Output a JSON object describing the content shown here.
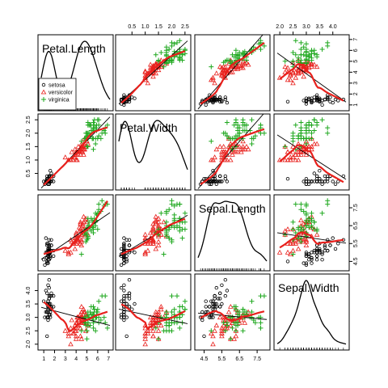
{
  "chart_data": {
    "type": "scatter",
    "layout": "scatterplot-matrix",
    "variables": [
      "Petal.Length",
      "Petal.Width",
      "Sepal.Length",
      "Sepal.Width"
    ],
    "ranges": {
      "Petal.Length": [
        1.0,
        6.9
      ],
      "Petal.Width": [
        0.1,
        2.5
      ],
      "Sepal.Length": [
        4.3,
        7.9
      ],
      "Sepal.Width": [
        2.0,
        4.4
      ]
    },
    "ticks": {
      "Petal.Length": [
        1,
        2,
        3,
        4,
        5,
        6,
        7
      ],
      "Petal.Width": [
        0.5,
        1.0,
        1.5,
        2.0,
        2.5
      ],
      "Sepal.Length": [
        4.5,
        5.5,
        6.5,
        7.5
      ],
      "Sepal.Width": [
        2.0,
        2.5,
        3.0,
        3.5,
        4.0
      ]
    },
    "tick_labels": {
      "Petal.Length": [
        "1",
        "2",
        "3",
        "4",
        "5",
        "6",
        "7"
      ],
      "Petal.Width": [
        "0.5",
        "1.0",
        "1.5",
        "2.0",
        "2.5"
      ],
      "Sepal.Length": [
        "4.5",
        "5.5",
        "6.5",
        "7.5"
      ],
      "Sepal.Width": [
        "2.0",
        "2.5",
        "3.0",
        "3.5",
        "4.0"
      ]
    },
    "groups": [
      {
        "name": "setosa",
        "marker": "circle",
        "color": "#000000"
      },
      {
        "name": "versicolor",
        "marker": "triangle",
        "color": "#e8201c"
      },
      {
        "name": "virginica",
        "marker": "plus",
        "color": "#1fa81f"
      }
    ],
    "smoother_color": "#e8201c",
    "regression_color": "#000000",
    "density_color": "#000000",
    "legend": {
      "position": "top-left panel, bottom-left",
      "entries": [
        "setosa",
        "versicolor",
        "virginica"
      ]
    },
    "points": {
      "setosa": [
        [
          1.4,
          0.2,
          5.1,
          3.5
        ],
        [
          1.4,
          0.2,
          4.9,
          3.0
        ],
        [
          1.3,
          0.2,
          4.7,
          3.2
        ],
        [
          1.5,
          0.2,
          4.6,
          3.1
        ],
        [
          1.4,
          0.2,
          5.0,
          3.6
        ],
        [
          1.7,
          0.4,
          5.4,
          3.9
        ],
        [
          1.4,
          0.3,
          4.6,
          3.4
        ],
        [
          1.5,
          0.2,
          5.0,
          3.4
        ],
        [
          1.4,
          0.2,
          4.4,
          2.9
        ],
        [
          1.5,
          0.1,
          4.9,
          3.1
        ],
        [
          1.5,
          0.2,
          5.4,
          3.7
        ],
        [
          1.6,
          0.2,
          4.8,
          3.4
        ],
        [
          1.4,
          0.1,
          4.8,
          3.0
        ],
        [
          1.1,
          0.1,
          4.3,
          3.0
        ],
        [
          1.2,
          0.2,
          5.8,
          4.0
        ],
        [
          1.5,
          0.4,
          5.7,
          4.4
        ],
        [
          1.3,
          0.4,
          5.4,
          3.9
        ],
        [
          1.4,
          0.3,
          5.1,
          3.5
        ],
        [
          1.7,
          0.3,
          5.7,
          3.8
        ],
        [
          1.5,
          0.3,
          5.1,
          3.8
        ],
        [
          1.7,
          0.2,
          5.4,
          3.4
        ],
        [
          1.5,
          0.4,
          5.1,
          3.7
        ],
        [
          1.0,
          0.2,
          4.6,
          3.6
        ],
        [
          1.7,
          0.5,
          5.1,
          3.3
        ],
        [
          1.9,
          0.2,
          4.8,
          3.4
        ],
        [
          1.6,
          0.2,
          5.0,
          3.0
        ],
        [
          1.6,
          0.4,
          5.0,
          3.4
        ],
        [
          1.5,
          0.2,
          5.2,
          3.5
        ],
        [
          1.4,
          0.2,
          5.2,
          3.4
        ],
        [
          1.6,
          0.2,
          4.7,
          3.2
        ],
        [
          1.6,
          0.2,
          4.8,
          3.1
        ],
        [
          1.5,
          0.4,
          5.4,
          3.4
        ],
        [
          1.5,
          0.1,
          5.2,
          4.1
        ],
        [
          1.4,
          0.2,
          5.5,
          4.2
        ],
        [
          1.5,
          0.2,
          4.9,
          3.1
        ],
        [
          1.2,
          0.2,
          5.0,
          3.2
        ],
        [
          1.3,
          0.2,
          5.5,
          3.5
        ],
        [
          1.4,
          0.1,
          4.9,
          3.6
        ],
        [
          1.3,
          0.2,
          4.4,
          3.0
        ],
        [
          1.5,
          0.2,
          5.1,
          3.4
        ],
        [
          1.3,
          0.3,
          5.0,
          3.5
        ],
        [
          1.3,
          0.3,
          4.5,
          2.3
        ],
        [
          1.3,
          0.2,
          4.4,
          3.2
        ],
        [
          1.6,
          0.6,
          5.0,
          3.5
        ],
        [
          1.9,
          0.4,
          5.1,
          3.8
        ],
        [
          1.4,
          0.3,
          4.8,
          3.0
        ],
        [
          1.6,
          0.2,
          5.1,
          3.8
        ],
        [
          1.4,
          0.2,
          4.6,
          3.2
        ],
        [
          1.5,
          0.2,
          5.3,
          3.7
        ],
        [
          1.4,
          0.2,
          5.0,
          3.3
        ]
      ],
      "versicolor": [
        [
          4.7,
          1.4,
          7.0,
          3.2
        ],
        [
          4.5,
          1.5,
          6.4,
          3.2
        ],
        [
          4.9,
          1.5,
          6.9,
          3.1
        ],
        [
          4.0,
          1.3,
          5.5,
          2.3
        ],
        [
          4.6,
          1.5,
          6.5,
          2.8
        ],
        [
          4.5,
          1.3,
          5.7,
          2.8
        ],
        [
          4.7,
          1.6,
          6.3,
          3.3
        ],
        [
          3.3,
          1.0,
          4.9,
          2.4
        ],
        [
          4.6,
          1.3,
          6.6,
          2.9
        ],
        [
          3.9,
          1.4,
          5.2,
          2.7
        ],
        [
          3.5,
          1.0,
          5.0,
          2.0
        ],
        [
          4.2,
          1.5,
          5.9,
          3.0
        ],
        [
          4.0,
          1.0,
          6.0,
          2.2
        ],
        [
          4.7,
          1.4,
          6.1,
          2.9
        ],
        [
          3.6,
          1.3,
          5.6,
          2.9
        ],
        [
          4.4,
          1.4,
          6.7,
          3.1
        ],
        [
          4.5,
          1.5,
          5.6,
          3.0
        ],
        [
          4.1,
          1.0,
          5.8,
          2.7
        ],
        [
          4.5,
          1.5,
          6.2,
          2.2
        ],
        [
          3.9,
          1.1,
          5.6,
          2.5
        ],
        [
          4.8,
          1.8,
          5.9,
          3.2
        ],
        [
          4.0,
          1.3,
          6.1,
          2.8
        ],
        [
          4.9,
          1.5,
          6.3,
          2.5
        ],
        [
          4.7,
          1.2,
          6.1,
          2.8
        ],
        [
          4.3,
          1.3,
          6.4,
          2.9
        ],
        [
          4.4,
          1.4,
          6.6,
          3.0
        ],
        [
          4.8,
          1.4,
          6.8,
          2.8
        ],
        [
          5.0,
          1.7,
          6.7,
          3.0
        ],
        [
          4.5,
          1.5,
          6.0,
          2.9
        ],
        [
          3.5,
          1.0,
          5.7,
          2.6
        ],
        [
          3.8,
          1.1,
          5.5,
          2.4
        ],
        [
          3.7,
          1.0,
          5.5,
          2.4
        ],
        [
          3.9,
          1.2,
          5.8,
          2.7
        ],
        [
          5.1,
          1.6,
          6.0,
          2.7
        ],
        [
          4.5,
          1.5,
          5.4,
          3.0
        ],
        [
          4.5,
          1.6,
          6.0,
          3.4
        ],
        [
          4.7,
          1.5,
          6.7,
          3.1
        ],
        [
          4.4,
          1.3,
          6.3,
          2.3
        ],
        [
          4.1,
          1.3,
          5.6,
          3.0
        ],
        [
          4.0,
          1.3,
          5.5,
          2.5
        ],
        [
          4.4,
          1.2,
          5.5,
          2.6
        ],
        [
          4.6,
          1.4,
          6.1,
          3.0
        ],
        [
          4.0,
          1.2,
          5.8,
          2.6
        ],
        [
          3.3,
          1.0,
          5.0,
          2.3
        ],
        [
          4.2,
          1.3,
          5.6,
          2.7
        ],
        [
          4.2,
          1.2,
          5.7,
          3.0
        ],
        [
          4.2,
          1.3,
          5.7,
          2.9
        ],
        [
          4.3,
          1.3,
          6.2,
          2.9
        ],
        [
          3.0,
          1.1,
          5.1,
          2.5
        ],
        [
          4.1,
          1.3,
          5.7,
          2.8
        ]
      ],
      "virginica": [
        [
          6.0,
          2.5,
          6.3,
          3.3
        ],
        [
          5.1,
          1.9,
          5.8,
          2.7
        ],
        [
          5.9,
          2.1,
          7.1,
          3.0
        ],
        [
          5.6,
          1.8,
          6.3,
          2.9
        ],
        [
          5.8,
          2.2,
          6.5,
          3.0
        ],
        [
          6.6,
          2.1,
          7.6,
          3.0
        ],
        [
          4.5,
          1.7,
          4.9,
          2.5
        ],
        [
          6.3,
          1.8,
          7.3,
          2.9
        ],
        [
          5.8,
          1.8,
          6.7,
          2.5
        ],
        [
          6.1,
          2.5,
          7.2,
          3.6
        ],
        [
          5.1,
          2.0,
          6.5,
          3.2
        ],
        [
          5.3,
          1.9,
          6.4,
          2.7
        ],
        [
          5.5,
          2.1,
          6.8,
          3.0
        ],
        [
          5.0,
          2.0,
          5.7,
          2.5
        ],
        [
          5.1,
          2.4,
          5.8,
          2.8
        ],
        [
          5.3,
          2.3,
          6.4,
          3.2
        ],
        [
          5.5,
          1.8,
          6.5,
          3.0
        ],
        [
          6.7,
          2.2,
          7.7,
          3.8
        ],
        [
          6.9,
          2.3,
          7.7,
          2.6
        ],
        [
          5.0,
          1.5,
          6.0,
          2.2
        ],
        [
          5.7,
          2.3,
          6.9,
          3.2
        ],
        [
          4.9,
          2.0,
          5.6,
          2.8
        ],
        [
          6.7,
          2.0,
          7.7,
          2.8
        ],
        [
          4.9,
          1.8,
          6.3,
          2.7
        ],
        [
          5.7,
          2.1,
          6.7,
          3.3
        ],
        [
          6.0,
          1.8,
          7.2,
          3.2
        ],
        [
          4.8,
          1.8,
          6.2,
          2.8
        ],
        [
          4.9,
          1.8,
          6.1,
          3.0
        ],
        [
          5.6,
          2.1,
          6.4,
          2.8
        ],
        [
          5.8,
          1.6,
          7.2,
          3.0
        ],
        [
          6.1,
          1.9,
          7.4,
          2.8
        ],
        [
          6.4,
          2.0,
          7.9,
          3.8
        ],
        [
          5.6,
          2.2,
          6.4,
          2.8
        ],
        [
          5.1,
          1.5,
          6.3,
          2.8
        ],
        [
          5.6,
          1.4,
          6.1,
          2.6
        ],
        [
          6.1,
          2.3,
          7.7,
          3.0
        ],
        [
          5.6,
          2.4,
          6.3,
          3.4
        ],
        [
          5.5,
          1.8,
          6.4,
          3.1
        ],
        [
          4.8,
          1.8,
          6.0,
          3.0
        ],
        [
          5.4,
          2.1,
          6.9,
          3.1
        ],
        [
          5.6,
          2.4,
          6.7,
          3.1
        ],
        [
          5.1,
          2.3,
          6.9,
          3.1
        ],
        [
          5.1,
          1.9,
          5.8,
          2.7
        ],
        [
          5.9,
          2.3,
          6.8,
          3.2
        ],
        [
          5.7,
          2.5,
          6.7,
          3.3
        ],
        [
          5.2,
          2.3,
          6.7,
          3.0
        ],
        [
          5.0,
          1.9,
          6.3,
          2.5
        ],
        [
          5.2,
          2.0,
          6.5,
          3.0
        ],
        [
          5.4,
          2.3,
          6.2,
          3.4
        ],
        [
          5.1,
          1.8,
          5.9,
          3.0
        ]
      ]
    }
  }
}
